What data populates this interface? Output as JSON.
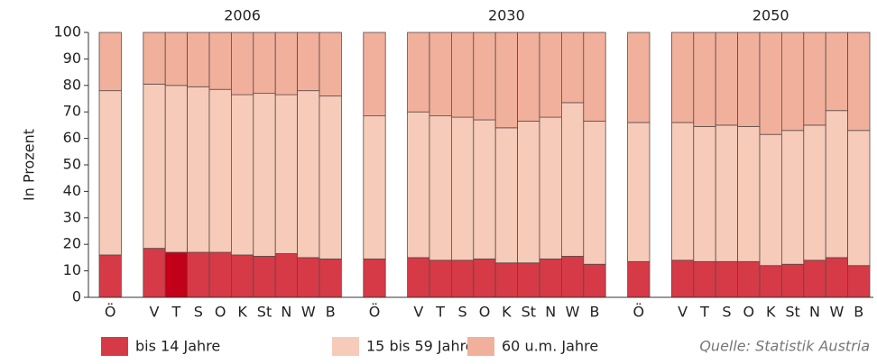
{
  "chart_data": {
    "type": "stacked_bar",
    "ylabel": "In Prozent",
    "groups": [
      "2006",
      "2030",
      "2050"
    ],
    "categories": [
      "Ö",
      "V",
      "T",
      "S",
      "O",
      "K",
      "St",
      "N",
      "W",
      "B",
      "Ö",
      "V",
      "T",
      "S",
      "O",
      "K",
      "St",
      "N",
      "W",
      "B",
      "Ö",
      "V",
      "T",
      "S",
      "O",
      "K",
      "St",
      "N",
      "W",
      "B"
    ],
    "series": [
      {
        "name": "bis 14 Jahre",
        "color": "#d53a46",
        "colors": [
          "#d53a46",
          "#d53a46",
          "#c20018",
          "#d53a46",
          "#d53a46",
          "#d53a46",
          "#d53a46",
          "#d53a46",
          "#d53a46",
          "#d53a46",
          "#d53a46",
          "#d53a46",
          "#d53a46",
          "#d53a46",
          "#d53a46",
          "#d53a46",
          "#d53a46",
          "#d53a46",
          "#d53a46",
          "#d53a46",
          "#d53a46",
          "#d53a46",
          "#d53a46",
          "#d53a46",
          "#d53a46",
          "#d53a46",
          "#d53a46",
          "#d53a46",
          "#d53a46",
          "#d53a46"
        ],
        "values": [
          16,
          18.5,
          17,
          17,
          17,
          16,
          15.5,
          16.5,
          15,
          14.5,
          14.5,
          15,
          14,
          14,
          14.5,
          13,
          13,
          14.5,
          15.5,
          12.5,
          13.5,
          14,
          13.5,
          13.5,
          13.5,
          12,
          12.5,
          14,
          15,
          12
        ]
      },
      {
        "name": "15 bis 59 Jahre",
        "color": "#f6cbb9",
        "values": [
          62,
          62,
          63,
          62.5,
          61.5,
          60.5,
          61.5,
          60,
          63,
          61.5,
          54,
          55,
          54.5,
          54,
          52.5,
          51,
          53.5,
          53.5,
          58,
          54,
          52.5,
          52,
          51,
          51.5,
          51,
          49.5,
          50.5,
          51,
          55.5,
          51
        ]
      },
      {
        "name": "60 u.m. Jahre",
        "color": "#f1b09b",
        "values": [
          22,
          19.5,
          20,
          20.5,
          21.5,
          23.5,
          23,
          23.5,
          22,
          24,
          31.5,
          30,
          31.5,
          32,
          33,
          36,
          33.5,
          32,
          26.5,
          33.5,
          34,
          34,
          35.5,
          35,
          35.5,
          38.5,
          37,
          35,
          29.5,
          37
        ]
      }
    ],
    "ylim": [
      0,
      100
    ],
    "yticks": [
      0,
      10,
      20,
      30,
      40,
      50,
      60,
      70,
      80,
      90,
      100
    ],
    "source": "Quelle: Statistik Austria"
  }
}
